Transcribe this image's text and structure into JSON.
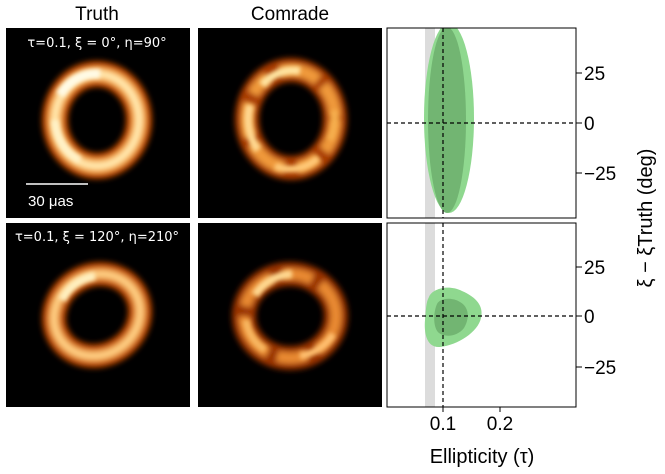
{
  "column_titles": {
    "truth": "Truth",
    "comrade": "Comrade"
  },
  "rows": [
    {
      "label": "τ=0.1, ξ = 0°, η=90°",
      "truth_ring": {
        "tau": 0.1,
        "xi_deg": 0,
        "eta_deg": 90
      }
    },
    {
      "label": "τ=0.1, ξ = 120°, η=210°",
      "truth_ring": {
        "tau": 0.1,
        "xi_deg": 120,
        "eta_deg": 210
      }
    }
  ],
  "scale_bar": {
    "label": "30 μas"
  },
  "colors": {
    "image_bg": "#000000",
    "ring_hot": "#ffd27a",
    "ring_mid": "#e06010",
    "posterior_outer": "#8fd88f",
    "posterior_inner": "#6aae6a",
    "shade_band": "#d8d8d8"
  },
  "chart_data": {
    "type": "contour",
    "xlabel": "Ellipticity (τ)",
    "ylabel": "ξ − ξTruth (deg)",
    "xlim": [
      0.0,
      0.35
    ],
    "ylim": [
      -45,
      45
    ],
    "xticks": [
      0.1,
      0.2
    ],
    "xtick_labels": [
      "0.1",
      "0.2"
    ],
    "yticks": [
      25,
      0,
      -25
    ],
    "ytick_labels": [
      "25",
      "0",
      "−25"
    ],
    "y_axis_side": "right",
    "truth_tau": 0.1,
    "shaded_tau_band": [
      0.07,
      0.09
    ],
    "panels": [
      {
        "row": 1,
        "outer_contour": {
          "tau_range": [
            0.05,
            0.17
          ],
          "xi_range": [
            -45,
            45
          ]
        },
        "inner_contour": {
          "tau_range": [
            0.06,
            0.14
          ],
          "xi_range": [
            -45,
            45
          ]
        }
      },
      {
        "row": 2,
        "outer_contour": {
          "tau_range": [
            0.07,
            0.18
          ],
          "xi_range": [
            -17,
            13
          ]
        },
        "inner_contour": {
          "tau_range": [
            0.08,
            0.14
          ],
          "xi_range": [
            -12,
            8
          ]
        }
      }
    ]
  }
}
